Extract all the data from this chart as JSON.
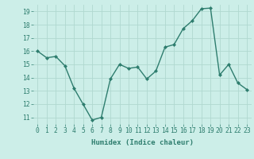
{
  "x": [
    0,
    1,
    2,
    3,
    4,
    5,
    6,
    7,
    8,
    9,
    10,
    11,
    12,
    13,
    14,
    15,
    16,
    17,
    18,
    19,
    20,
    21,
    22,
    23
  ],
  "y": [
    16.0,
    15.5,
    15.6,
    14.9,
    13.2,
    12.0,
    10.8,
    11.0,
    13.9,
    15.0,
    14.7,
    14.8,
    13.9,
    14.5,
    16.3,
    16.5,
    17.7,
    18.3,
    19.2,
    19.25,
    14.2,
    15.0,
    13.6,
    13.1
  ],
  "line_color": "#2e7d6e",
  "marker": "D",
  "marker_size": 2.0,
  "bg_color": "#cceee8",
  "grid_color": "#b0d8d0",
  "xlabel": "Humidex (Indice chaleur)",
  "xlim": [
    -0.5,
    23.5
  ],
  "ylim": [
    10.5,
    19.5
  ],
  "yticks": [
    11,
    12,
    13,
    14,
    15,
    16,
    17,
    18,
    19
  ],
  "xticks": [
    0,
    1,
    2,
    3,
    4,
    5,
    6,
    7,
    8,
    9,
    10,
    11,
    12,
    13,
    14,
    15,
    16,
    17,
    18,
    19,
    20,
    21,
    22,
    23
  ],
  "xlabel_fontsize": 6.5,
  "tick_fontsize": 5.8,
  "line_width": 1.0
}
